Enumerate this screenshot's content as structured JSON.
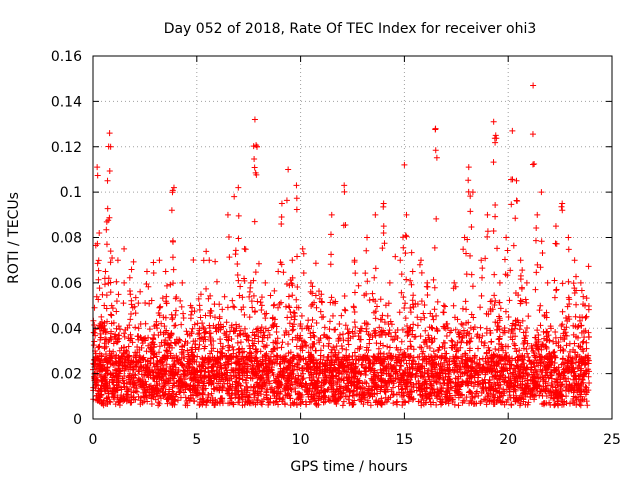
{
  "chart_data": {
    "type": "scatter",
    "title": "Day 052 of 2018, Rate Of TEC Index for receiver ohi3",
    "xlabel": "GPS time / hours",
    "ylabel": "ROTI / TECUs",
    "xlim": [
      0,
      25
    ],
    "ylim": [
      0,
      0.16
    ],
    "x_ticks": [
      "0",
      "5",
      "10",
      "15",
      "20",
      "25"
    ],
    "y_ticks": [
      "0",
      "0.02",
      "0.04",
      "0.06",
      "0.08",
      "0.1",
      "0.12",
      "0.14",
      "0.16"
    ],
    "grid": true,
    "marker": "plus",
    "series": [
      {
        "name": "ROTI",
        "color": "#ff0000",
        "x": [
          0.1,
          0.2,
          0.3,
          0.4,
          0.6,
          0.7,
          0.8,
          0.85,
          0.9,
          1.2,
          1.5,
          1.8,
          2.2,
          2.6,
          2.9,
          3.2,
          3.5,
          3.8,
          3.9,
          4.3,
          4.7,
          5.2,
          5.6,
          6.1,
          6.5,
          6.8,
          7.0,
          7.3,
          7.6,
          7.8,
          7.9,
          8.3,
          8.7,
          9.1,
          9.4,
          9.6,
          9.8,
          10.1,
          10.5,
          11.0,
          11.5,
          12.1,
          12.6,
          13.2,
          13.6,
          14.0,
          14.3,
          14.8,
          15.0,
          15.1,
          15.4,
          15.8,
          16.1,
          16.5,
          16.9,
          17.4,
          17.9,
          18.1,
          18.3,
          18.7,
          19.0,
          19.3,
          19.4,
          19.6,
          19.9,
          20.2,
          20.4,
          20.6,
          20.9,
          21.2,
          21.4,
          21.6,
          21.9,
          22.3,
          22.6,
          22.9,
          23.2,
          23.5,
          23.7
        ],
        "y": [
          0.03,
          0.111,
          0.082,
          0.045,
          0.065,
          0.105,
          0.126,
          0.12,
          0.05,
          0.07,
          0.06,
          0.055,
          0.04,
          0.065,
          0.035,
          0.07,
          0.065,
          0.092,
          0.102,
          0.06,
          0.05,
          0.055,
          0.07,
          0.045,
          0.09,
          0.098,
          0.102,
          0.075,
          0.06,
          0.132,
          0.12,
          0.06,
          0.05,
          0.095,
          0.11,
          0.07,
          0.103,
          0.075,
          0.06,
          0.055,
          0.09,
          0.103,
          0.07,
          0.08,
          0.09,
          0.095,
          0.06,
          0.07,
          0.112,
          0.09,
          0.065,
          0.07,
          0.06,
          0.128,
          0.05,
          0.06,
          0.08,
          0.111,
          0.1,
          0.07,
          0.09,
          0.131,
          0.125,
          0.06,
          0.08,
          0.127,
          0.105,
          0.07,
          0.06,
          0.147,
          0.09,
          0.1,
          0.06,
          0.085,
          0.095,
          0.08,
          0.07,
          0.06,
          0.05
        ]
      }
    ],
    "note": "Dense cloud of points: ~5000 samples with ROTI mostly between 0.005 and 0.045 across 0-23.9 h; listed points are the visible outliers."
  }
}
